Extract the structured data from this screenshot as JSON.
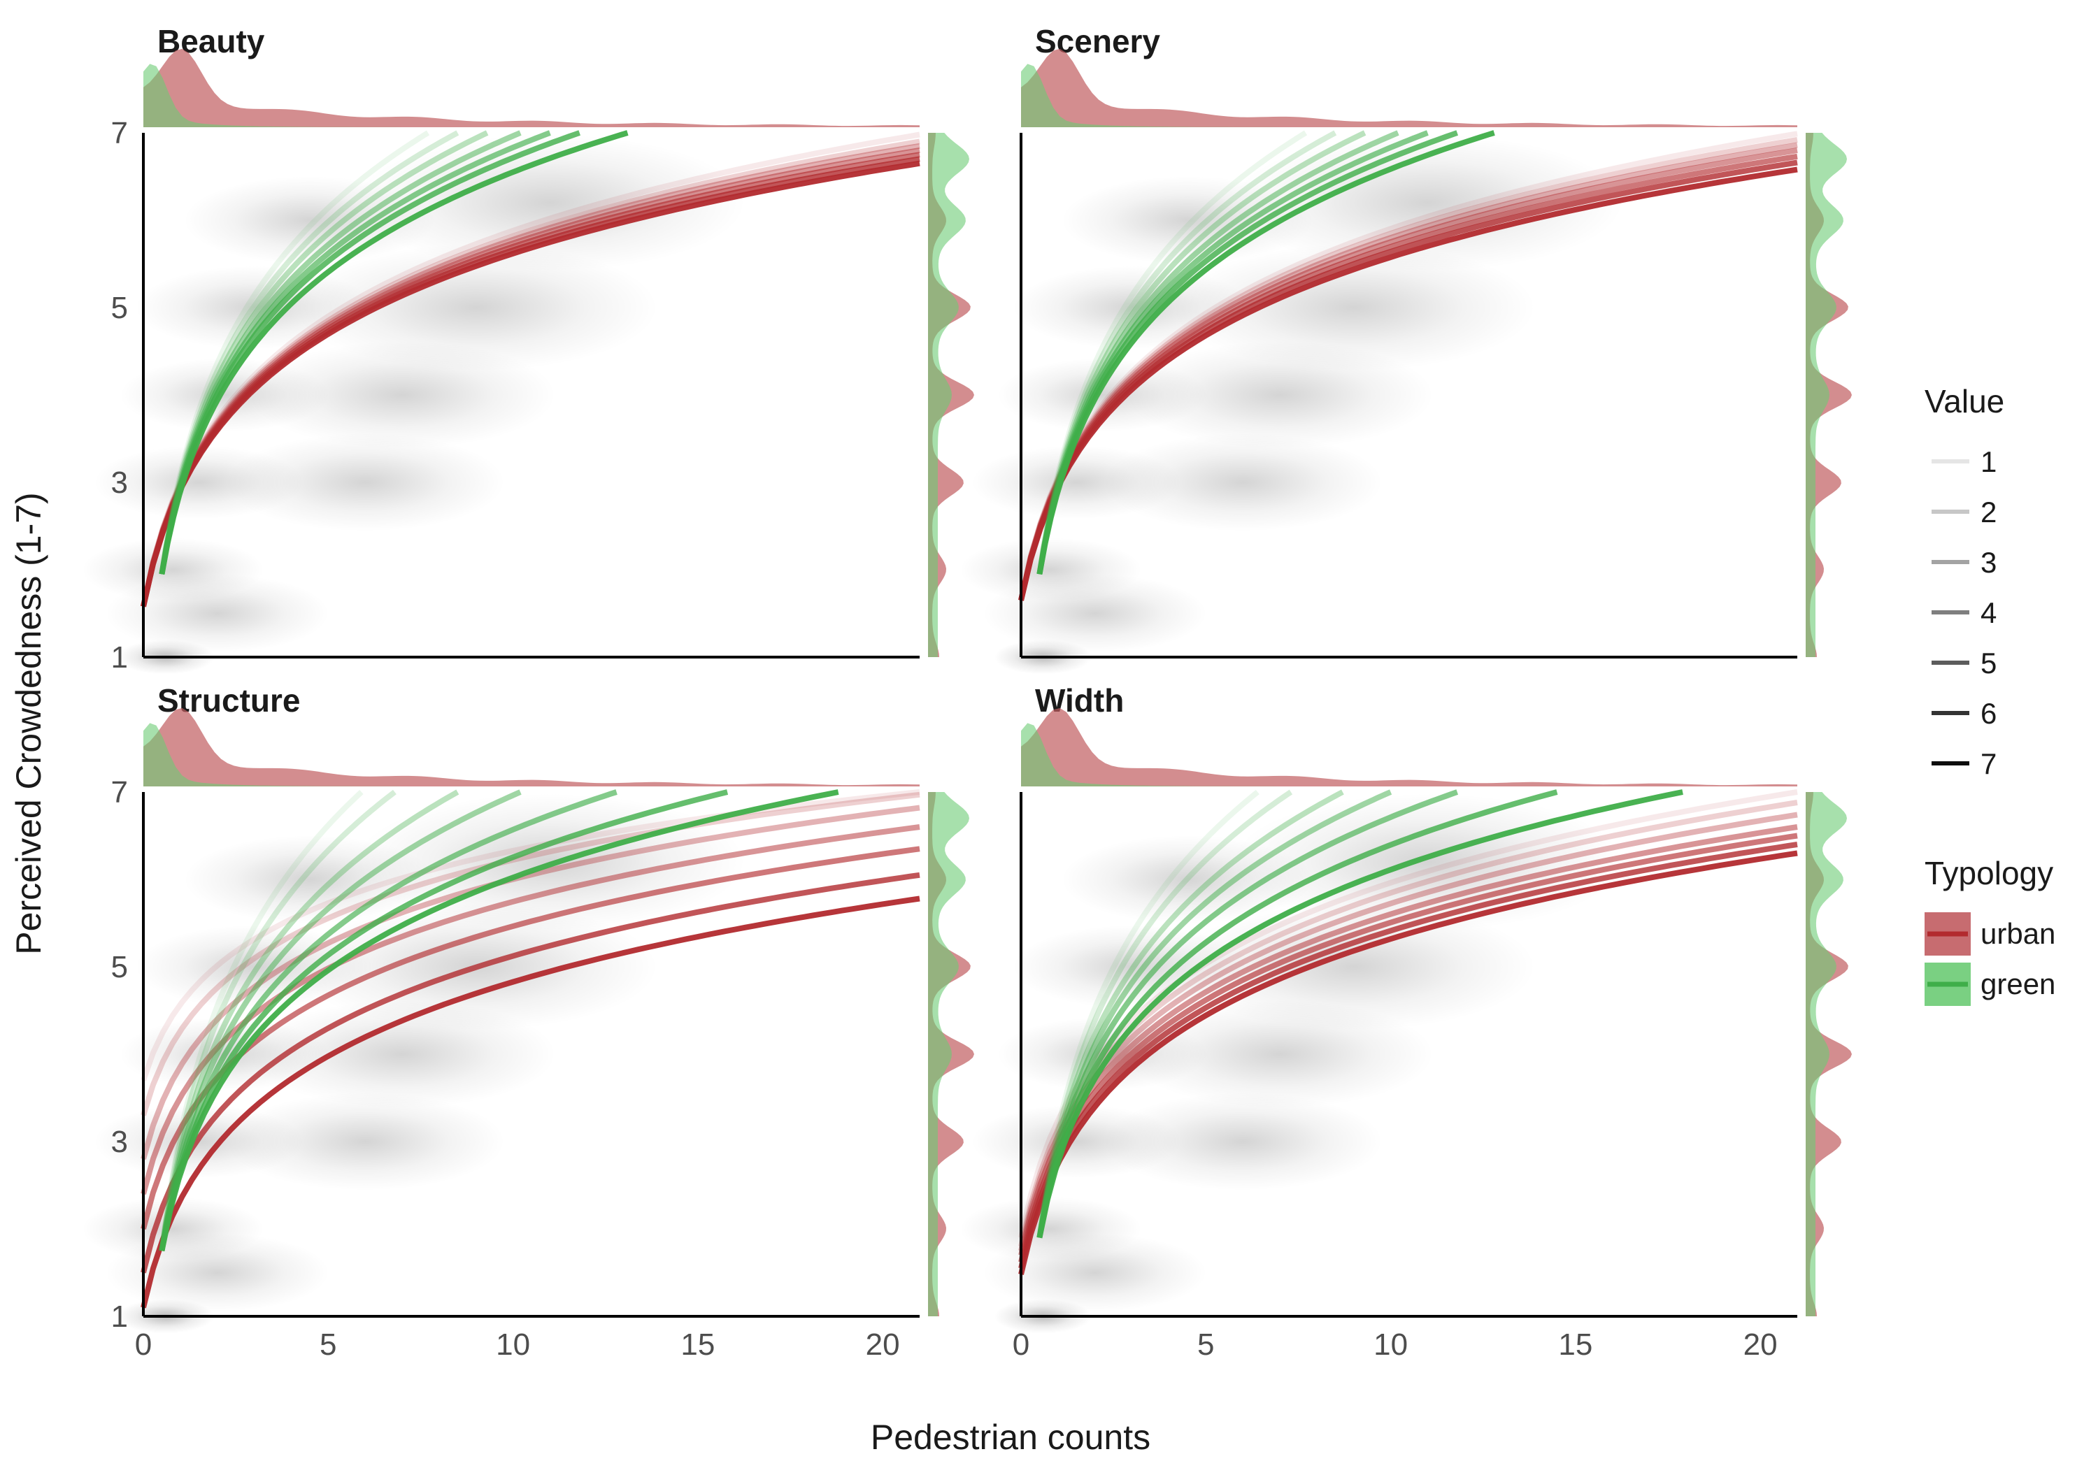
{
  "chart_data": {
    "type": "line",
    "xlabel": "Pedestrian counts",
    "ylabel": "Perceived Crowdedness (1-7)",
    "xlim": [
      0,
      21
    ],
    "ylim": [
      1,
      7
    ],
    "xticks": [
      "0",
      "5",
      "10",
      "15",
      "20"
    ],
    "yticks": [
      "1",
      "3",
      "5",
      "7"
    ],
    "legend": {
      "value_title": "Value",
      "value_levels": [
        "1",
        "2",
        "3",
        "4",
        "5",
        "6",
        "7"
      ],
      "typology_title": "Typology",
      "typology_levels": [
        "urban",
        "green"
      ]
    },
    "colors": {
      "urban": "#b22a2e",
      "green": "#3fae49",
      "urban_fill": "#c15c60",
      "green_fill": "#6ccb74",
      "overlap_fill": "#7d9a63"
    },
    "panels": [
      {
        "title": "Beauty",
        "series": [
          {
            "typology": "urban",
            "x0": 0.0,
            "x_end": 21,
            "values": [
              [
                1,
                1.58,
                6.98
              ],
              [
                2,
                1.58,
                6.9
              ],
              [
                3,
                1.58,
                6.85
              ],
              [
                4,
                1.58,
                6.8
              ],
              [
                5,
                1.58,
                6.75
              ],
              [
                6,
                1.58,
                6.7
              ],
              [
                7,
                1.58,
                6.65
              ]
            ]
          },
          {
            "typology": "green",
            "x0": 0.5,
            "y0": 1.95,
            "x_end_values": [
              [
                1,
                7.7
              ],
              [
                2,
                8.5
              ],
              [
                3,
                9.3
              ],
              [
                4,
                10.2
              ],
              [
                5,
                11.0
              ],
              [
                6,
                11.8
              ],
              [
                7,
                13.1
              ]
            ]
          }
        ]
      },
      {
        "title": "Scenery",
        "series": [
          {
            "typology": "urban",
            "x0": 0.0,
            "x_end": 21,
            "values": [
              [
                1,
                1.65,
                6.99
              ],
              [
                2,
                1.65,
                6.92
              ],
              [
                3,
                1.65,
                6.86
              ],
              [
                4,
                1.65,
                6.8
              ],
              [
                5,
                1.65,
                6.73
              ],
              [
                6,
                1.65,
                6.66
              ],
              [
                7,
                1.65,
                6.58
              ]
            ]
          },
          {
            "typology": "green",
            "x0": 0.5,
            "y0": 1.95,
            "x_end_values": [
              [
                1,
                7.7
              ],
              [
                2,
                8.5
              ],
              [
                3,
                9.3
              ],
              [
                4,
                10.2
              ],
              [
                5,
                11.0
              ],
              [
                6,
                11.8
              ],
              [
                7,
                12.8
              ]
            ]
          }
        ]
      },
      {
        "title": "Structure",
        "series": [
          {
            "typology": "urban",
            "x0": 0.0,
            "x_end": 21,
            "values": [
              [
                1,
                3.7,
                7.0
              ],
              [
                2,
                3.3,
                6.97
              ],
              [
                3,
                2.8,
                6.82
              ],
              [
                4,
                2.4,
                6.6
              ],
              [
                5,
                2.0,
                6.35
              ],
              [
                6,
                1.5,
                6.05
              ],
              [
                7,
                1.1,
                5.78
              ]
            ]
          },
          {
            "typology": "green",
            "x0": 0.5,
            "y0": 1.75,
            "x_end_values": [
              [
                1,
                5.9
              ],
              [
                2,
                6.8
              ],
              [
                3,
                8.5
              ],
              [
                4,
                10.2
              ],
              [
                5,
                12.8
              ],
              [
                6,
                15.8
              ],
              [
                7,
                18.8
              ]
            ]
          }
        ]
      },
      {
        "title": "Width",
        "series": [
          {
            "typology": "urban",
            "x0": 0.0,
            "x_end": 21,
            "values": [
              [
                1,
                1.9,
                7.0
              ],
              [
                2,
                1.8,
                6.88
              ],
              [
                3,
                1.75,
                6.74
              ],
              [
                4,
                1.7,
                6.6
              ],
              [
                5,
                1.62,
                6.5
              ],
              [
                6,
                1.55,
                6.4
              ],
              [
                7,
                1.48,
                6.3
              ]
            ]
          },
          {
            "typology": "green",
            "x0": 0.5,
            "y0": 1.9,
            "x_end_values": [
              [
                1,
                6.4
              ],
              [
                2,
                7.3
              ],
              [
                3,
                8.7
              ],
              [
                4,
                10.0
              ],
              [
                5,
                11.8
              ],
              [
                6,
                14.5
              ],
              [
                7,
                17.9
              ]
            ]
          }
        ]
      }
    ]
  }
}
